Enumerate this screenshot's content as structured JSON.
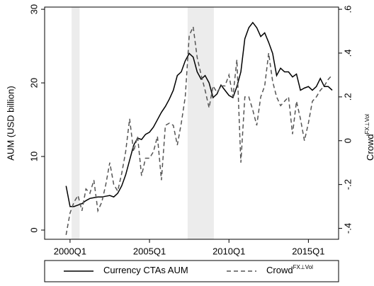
{
  "chart_data": {
    "type": "line",
    "ylabel": "AUM (USD billion)",
    "y2label": "Crowd",
    "y2label_sup": "FX⊥Vol",
    "x": [
      1999.75,
      2000,
      2000.25,
      2000.5,
      2000.75,
      2001,
      2001.25,
      2001.5,
      2001.75,
      2002,
      2002.25,
      2002.5,
      2002.75,
      2003,
      2003.25,
      2003.5,
      2003.75,
      2004,
      2004.25,
      2004.5,
      2004.75,
      2005,
      2005.25,
      2005.5,
      2005.75,
      2006,
      2006.25,
      2006.5,
      2006.75,
      2007,
      2007.25,
      2007.5,
      2007.75,
      2008,
      2008.25,
      2008.5,
      2008.75,
      2009,
      2009.25,
      2009.5,
      2009.75,
      2010,
      2010.25,
      2010.5,
      2010.75,
      2011,
      2011.25,
      2011.5,
      2011.75,
      2012,
      2012.25,
      2012.5,
      2012.75,
      2013,
      2013.25,
      2013.5,
      2013.75,
      2014,
      2014.25,
      2014.5,
      2014.75,
      2015,
      2015.25,
      2015.5,
      2015.75,
      2016,
      2016.25,
      2016.5
    ],
    "series": [
      {
        "name": "Currency CTAs AUM",
        "color": "#000000",
        "dash": false,
        "values": [
          6.0,
          3.2,
          3.2,
          3.4,
          3.6,
          4.0,
          4.3,
          4.4,
          4.5,
          4.5,
          4.6,
          4.7,
          4.5,
          5.0,
          6.0,
          7.5,
          9.5,
          11.5,
          12.5,
          12.3,
          13.0,
          13.3,
          14.0,
          15.0,
          16.0,
          16.8,
          17.8,
          19.0,
          21.0,
          21.5,
          23.0,
          24.0,
          23.5,
          21.5,
          20.5,
          21.0,
          20.0,
          18.0,
          18.5,
          19.7,
          19.0,
          18.3,
          18.0,
          19.5,
          21.5,
          26.0,
          27.5,
          28.2,
          27.5,
          26.3,
          26.8,
          25.5,
          24.0,
          21.0,
          22.0,
          21.5,
          21.5,
          20.8,
          21.2,
          19.0,
          19.3,
          19.5,
          19.0,
          19.5,
          20.6,
          19.5,
          19.5,
          19.0
        ]
      },
      {
        "name": "Crowd",
        "name_sup": "FX⊥Vol",
        "color": "#555555",
        "dash": true,
        "axis": "y2",
        "values": [
          -0.43,
          -0.33,
          -0.28,
          -0.25,
          -0.32,
          -0.22,
          -0.24,
          -0.18,
          -0.32,
          -0.28,
          -0.2,
          -0.1,
          -0.2,
          -0.23,
          -0.15,
          -0.05,
          0.1,
          -0.05,
          0.02,
          -0.16,
          -0.08,
          -0.08,
          -0.05,
          0.02,
          -0.18,
          0.07,
          0.08,
          0.07,
          -0.02,
          0.08,
          0.2,
          0.48,
          0.52,
          0.38,
          0.3,
          0.23,
          0.15,
          0.25,
          0.22,
          0.25,
          0.25,
          0.3,
          0.2,
          0.37,
          -0.1,
          0.2,
          0.2,
          0.14,
          0.07,
          0.2,
          0.25,
          0.4,
          0.27,
          0.2,
          0.16,
          0.18,
          0.2,
          0.03,
          0.18,
          0.1,
          0.0,
          0.08,
          0.18,
          0.2,
          0.23,
          0.25,
          0.28,
          0.3
        ]
      }
    ],
    "shaded_periods": [
      [
        2000.1,
        2000.6
      ],
      [
        2007.4,
        2009.05
      ]
    ],
    "xlim": [
      1998.4,
      2016.9
    ],
    "xticks": [
      {
        "value": 2000,
        "label": "2000Q1"
      },
      {
        "value": 2005,
        "label": "2005Q1"
      },
      {
        "value": 2010,
        "label": "2010Q1"
      },
      {
        "value": 2015,
        "label": "2015Q1"
      }
    ],
    "ylim": [
      -1.25,
      30.3
    ],
    "yticks": [
      0,
      10,
      20,
      30
    ],
    "y2lim": [
      -0.45,
      0.61
    ],
    "y2ticks": [
      {
        "value": -0.4,
        "label": "-.4"
      },
      {
        "value": -0.2,
        "label": "-.2"
      },
      0,
      {
        "value": 0.2,
        "label": ".2"
      },
      {
        "value": 0.4,
        "label": ".4"
      },
      {
        "value": 0.6,
        "label": ".6"
      }
    ],
    "legend": "bottom"
  }
}
